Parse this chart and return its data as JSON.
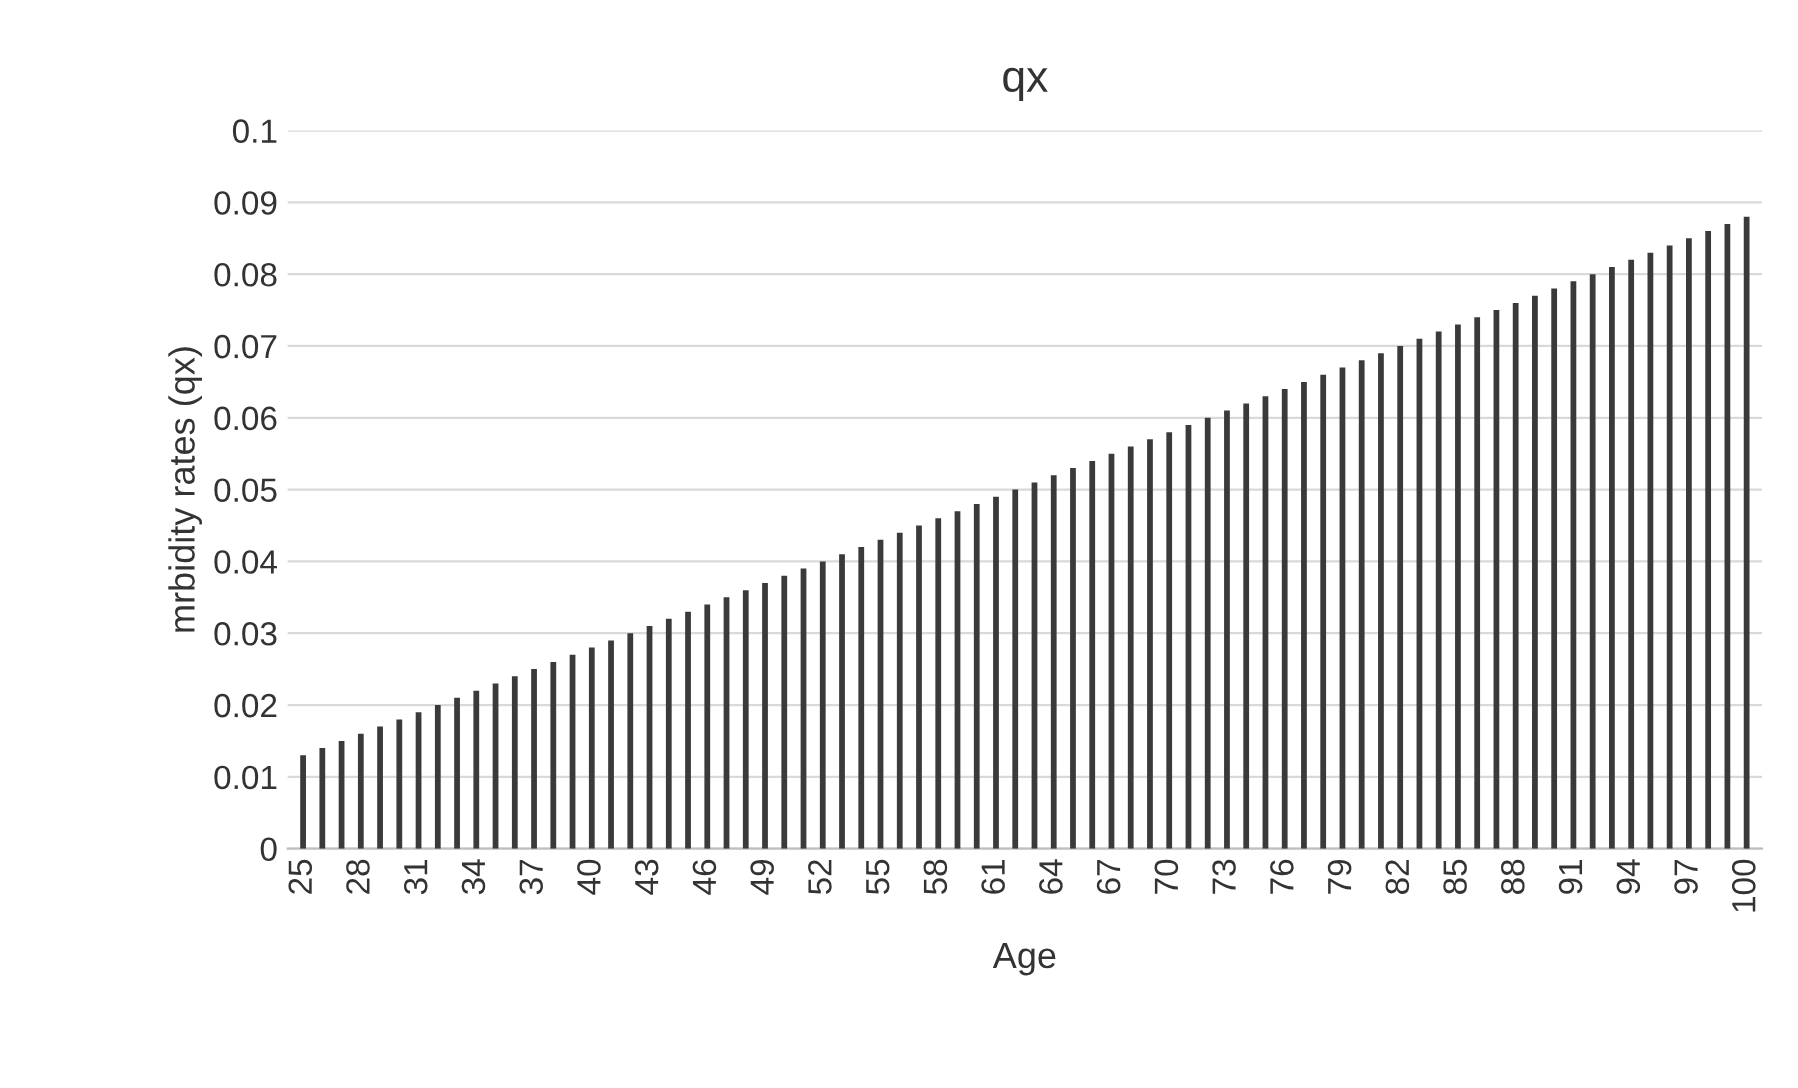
{
  "chart_data": {
    "type": "bar",
    "title": "qx",
    "xlabel": "Age",
    "ylabel": "mrbidity rates (qx)",
    "categories": [
      "25",
      null,
      null,
      "28",
      null,
      null,
      "31",
      null,
      null,
      "34",
      null,
      null,
      "37",
      null,
      null,
      "40",
      null,
      null,
      "43",
      null,
      null,
      "46",
      null,
      null,
      "49",
      null,
      null,
      "52",
      null,
      null,
      "55",
      null,
      null,
      "58",
      null,
      null,
      "61",
      null,
      null,
      "64",
      null,
      null,
      "67",
      null,
      null,
      "70",
      null,
      null,
      "73",
      null,
      null,
      "76",
      null,
      null,
      "79",
      null,
      null,
      "82",
      null,
      null,
      "85",
      null,
      null,
      "88",
      null,
      null,
      "91",
      null,
      null,
      "94",
      null,
      null,
      "97",
      null,
      null,
      "100"
    ],
    "values": [
      0.013,
      0.014,
      0.015,
      0.016,
      0.017,
      0.018,
      0.019,
      0.02,
      0.021,
      0.022,
      0.023,
      0.024,
      0.025,
      0.026,
      0.027,
      0.028,
      0.029,
      0.03,
      0.031,
      0.032,
      0.033,
      0.034,
      0.035,
      0.036,
      0.037,
      0.038,
      0.039,
      0.04,
      0.041,
      0.042,
      0.043,
      0.044,
      0.045,
      0.046,
      0.047,
      0.048,
      0.049,
      0.05,
      0.051,
      0.052,
      0.053,
      0.054,
      0.055,
      0.056,
      0.057,
      0.058,
      0.059,
      0.06,
      0.061,
      0.062,
      0.063,
      0.064,
      0.065,
      0.066,
      0.067,
      0.068,
      0.069,
      0.07,
      0.071,
      0.072,
      0.073,
      0.074,
      0.075,
      0.076,
      0.077,
      0.078,
      0.079,
      0.08,
      0.081,
      0.082,
      0.083,
      0.084,
      0.085,
      0.086,
      0.087,
      0.088
    ],
    "color": "#3a3a3a",
    "ylim": [
      0,
      0.1
    ],
    "yticks": [
      0,
      0.01,
      0.02,
      0.03,
      0.04,
      0.05,
      0.06,
      0.07,
      0.08,
      0.09,
      0.1
    ],
    "grid": "y"
  }
}
